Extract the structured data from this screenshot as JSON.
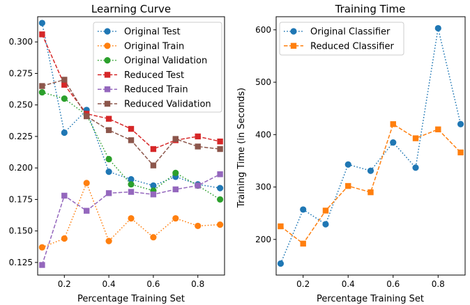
{
  "chart_data": [
    {
      "type": "line",
      "title": "Learning Curve",
      "xlabel": "Percentage Training Set",
      "ylabel": "",
      "xlim": [
        0.08,
        0.92
      ],
      "ylim": [
        0.115,
        0.32
      ],
      "xticks": [
        0.2,
        0.4,
        0.6,
        0.8
      ],
      "xtick_labels": [
        "0.2",
        "0.4",
        "0.6",
        "0.8"
      ],
      "yticks": [
        0.125,
        0.15,
        0.175,
        0.2,
        0.225,
        0.25,
        0.275,
        0.3
      ],
      "ytick_labels": [
        "0.125",
        "0.150",
        "0.175",
        "0.200",
        "0.225",
        "0.250",
        "0.275",
        "0.300"
      ],
      "grid": false,
      "legend_position": "top-right",
      "x": [
        0.1,
        0.2,
        0.3,
        0.4,
        0.5,
        0.6,
        0.7,
        0.8,
        0.9
      ],
      "series": [
        {
          "name": "Original Test",
          "color": "#1f77b4",
          "marker": "circle",
          "dash": "dotted",
          "values": [
            0.315,
            0.228,
            0.246,
            0.197,
            0.191,
            0.186,
            0.193,
            0.187,
            0.184
          ]
        },
        {
          "name": "Original Train",
          "color": "#ff7f0e",
          "marker": "circle",
          "dash": "dotted",
          "values": [
            0.137,
            0.144,
            0.188,
            0.142,
            0.16,
            0.145,
            0.16,
            0.154,
            0.155
          ]
        },
        {
          "name": "Original Validation",
          "color": "#2ca02c",
          "marker": "circle",
          "dash": "dotted",
          "values": [
            0.26,
            0.255,
            0.242,
            0.207,
            0.187,
            0.182,
            0.196,
            0.186,
            0.175
          ]
        },
        {
          "name": "Reduced Test",
          "color": "#d62728",
          "marker": "square",
          "dash": "dashed",
          "values": [
            0.306,
            0.266,
            0.243,
            0.239,
            0.231,
            0.215,
            0.222,
            0.225,
            0.221
          ]
        },
        {
          "name": "Reduced Train",
          "color": "#9467bd",
          "marker": "square",
          "dash": "dashed",
          "values": [
            0.123,
            0.178,
            0.166,
            0.18,
            0.181,
            0.179,
            0.183,
            0.186,
            0.195
          ]
        },
        {
          "name": "Reduced Validation",
          "color": "#8c564b",
          "marker": "square",
          "dash": "dashed",
          "values": [
            0.265,
            0.27,
            0.241,
            0.23,
            0.222,
            0.202,
            0.223,
            0.217,
            0.215
          ]
        }
      ]
    },
    {
      "type": "line",
      "title": "Training Time",
      "xlabel": "Percentage Training Set",
      "ylabel": "Training Time (in Seconds)",
      "xlim": [
        0.08,
        0.92
      ],
      "ylim": [
        132,
        625
      ],
      "xticks": [
        0.2,
        0.4,
        0.6,
        0.8
      ],
      "xtick_labels": [
        "0.2",
        "0.4",
        "0.6",
        "0.8"
      ],
      "yticks": [
        200,
        300,
        400,
        500,
        600
      ],
      "ytick_labels": [
        "200",
        "300",
        "400",
        "500",
        "600"
      ],
      "grid": false,
      "legend_position": "top-left",
      "x": [
        0.1,
        0.2,
        0.3,
        0.4,
        0.5,
        0.6,
        0.7,
        0.8,
        0.9
      ],
      "series": [
        {
          "name": "Original Classifier",
          "color": "#1f77b4",
          "marker": "circle",
          "dash": "dotted",
          "values": [
            154,
            257,
            229,
            343,
            331,
            385,
            337,
            603,
            420
          ]
        },
        {
          "name": "Reduced Classifier",
          "color": "#ff7f0e",
          "marker": "square",
          "dash": "dashed",
          "values": [
            225,
            192,
            255,
            302,
            290,
            420,
            393,
            410,
            366
          ]
        }
      ]
    }
  ]
}
